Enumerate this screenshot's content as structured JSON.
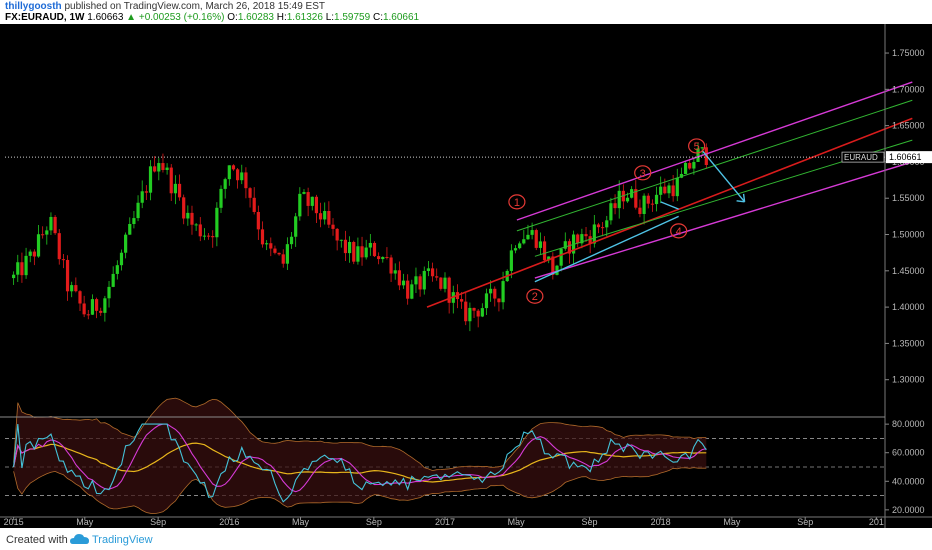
{
  "header": {
    "author": "thillygoosth",
    "published": "published on TradingView.com, March 26, 2018 15:49 EST",
    "symbol": "FX:EURAUD, 1W",
    "last": "1.60663",
    "change": "▲ +0.00253 (+0.16%)",
    "o_label": "O:",
    "o_value": "1.60283",
    "h_label": "H:",
    "h_value": "1.61326",
    "l_label": "L:",
    "l_value": "1.59759",
    "c_label": "C:",
    "c_value": "1.60661"
  },
  "footer": {
    "created": "Created with",
    "brand": "TradingView"
  },
  "colors": {
    "background": "#000000",
    "up": "#22cc22",
    "down": "#e31b1b",
    "pitchfork_median": "#d91c1c",
    "pitchfork_outer": "#d63ad6",
    "pitchfork_inner": "#32b532",
    "arrow": "#4fc3e6",
    "wave_label": "#e53935",
    "rsi": "#44c3d9",
    "rsi_ma": "#d63ad6",
    "bb_mid": "#e8b61c"
  },
  "chart_data": {
    "type": "candlestick",
    "instrument": "EURAUD",
    "interval": "1W",
    "price_axis": {
      "min": 1.25,
      "max": 1.79,
      "ticks": [
        "1.75000",
        "1.70000",
        "1.65000",
        "1.60000",
        "1.55000",
        "1.50000",
        "1.45000",
        "1.40000",
        "1.35000",
        "1.30000"
      ]
    },
    "time_axis": {
      "ticks": [
        "2015",
        "May",
        "Sep",
        "2016",
        "May",
        "Sep",
        "2017",
        "May",
        "Sep",
        "2018",
        "May",
        "Sep",
        "201"
      ]
    },
    "last_price": {
      "label": "EURAUD",
      "value": "1.60661"
    },
    "close_path": [
      [
        "2015-01",
        1.44
      ],
      [
        "2015-02",
        1.47
      ],
      [
        "2015-03",
        1.52
      ],
      [
        "2015-04",
        1.43
      ],
      [
        "2015-05",
        1.39
      ],
      [
        "2015-06",
        1.41
      ],
      [
        "2015-07",
        1.47
      ],
      [
        "2015-08",
        1.54
      ],
      [
        "2015-09",
        1.61
      ],
      [
        "2015-10",
        1.56
      ],
      [
        "2015-11",
        1.51
      ],
      [
        "2015-12",
        1.5
      ],
      [
        "2016-01",
        1.6
      ],
      [
        "2016-02",
        1.57
      ],
      [
        "2016-03",
        1.48
      ],
      [
        "2016-04",
        1.46
      ],
      [
        "2016-05",
        1.55
      ],
      [
        "2016-06",
        1.53
      ],
      [
        "2016-07",
        1.49
      ],
      [
        "2016-08",
        1.47
      ],
      [
        "2016-09",
        1.48
      ],
      [
        "2016-10",
        1.46
      ],
      [
        "2016-11",
        1.42
      ],
      [
        "2016-12",
        1.44
      ],
      [
        "2017-01",
        1.43
      ],
      [
        "2017-02",
        1.39
      ],
      [
        "2017-03",
        1.4
      ],
      [
        "2017-04",
        1.42
      ],
      [
        "2017-05",
        1.5
      ],
      [
        "2017-06",
        1.5
      ],
      [
        "2017-07",
        1.45
      ],
      [
        "2017-08",
        1.49
      ],
      [
        "2017-09",
        1.5
      ],
      [
        "2017-10",
        1.52
      ],
      [
        "2017-11",
        1.56
      ],
      [
        "2017-12",
        1.54
      ],
      [
        "2018-01",
        1.56
      ],
      [
        "2018-02",
        1.57
      ],
      [
        "2018-03",
        1.61
      ]
    ],
    "pitchfork": {
      "median": [
        [
          "2016-12",
          1.4
        ],
        [
          "2019-03",
          1.66
        ]
      ],
      "upper": [
        [
          "2017-05",
          1.52
        ],
        [
          "2019-03",
          1.71
        ]
      ],
      "lower": [
        [
          "2017-06",
          1.44
        ],
        [
          "2019-03",
          1.6
        ]
      ]
    },
    "wave_labels": [
      {
        "label": "1",
        "date": "2017-05",
        "price": 1.545
      },
      {
        "label": "2",
        "date": "2017-06",
        "price": 1.415
      },
      {
        "label": "3",
        "date": "2017-12",
        "price": 1.585
      },
      {
        "label": "4",
        "date": "2018-02",
        "price": 1.505
      },
      {
        "label": "5",
        "date": "2018-03",
        "price": 1.622
      }
    ],
    "indicator": {
      "type": "RSI",
      "ticks": [
        "80.0000",
        "60.0000",
        "40.0000",
        "20.0000"
      ],
      "levels": [
        70,
        50,
        30
      ],
      "range": [
        15,
        85
      ]
    }
  }
}
